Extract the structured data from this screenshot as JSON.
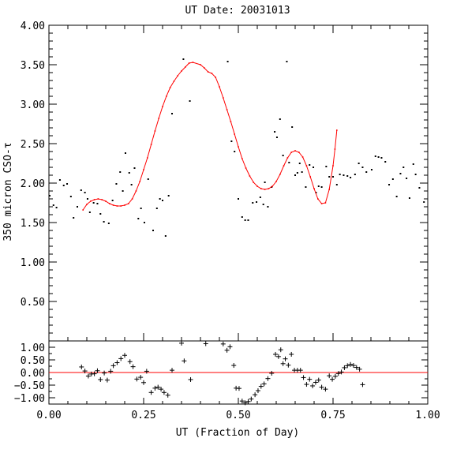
{
  "chart_data": {
    "type": "scatter",
    "title": "UT Date: 20031013",
    "xlabel": "UT (Fraction of Day)",
    "ylabel": "350 micron CSO-τ",
    "xlim": [
      0.0,
      1.0
    ],
    "ylim": [
      0.0,
      4.0
    ],
    "xticks": [
      "0.00",
      "0.25",
      "0.50",
      "0.75",
      "1.00"
    ],
    "yticks": [
      "0.50",
      "1.00",
      "1.50",
      "2.00",
      "2.50",
      "3.00",
      "3.50",
      "4.00"
    ],
    "colors": {
      "fit": "#ff0000",
      "points": "#000000",
      "axes": "#000000"
    },
    "series": [
      {
        "kind": "points",
        "points": [
          [
            0.002,
            1.84
          ],
          [
            0.012,
            1.72
          ],
          [
            0.02,
            1.69
          ],
          [
            0.029,
            2.04
          ],
          [
            0.039,
            1.97
          ],
          [
            0.048,
            1.99
          ],
          [
            0.058,
            1.83
          ],
          [
            0.065,
            1.56
          ],
          [
            0.075,
            1.7
          ],
          [
            0.085,
            1.91
          ],
          [
            0.095,
            1.88
          ],
          [
            0.102,
            1.8
          ],
          [
            0.108,
            1.63
          ],
          [
            0.118,
            1.75
          ],
          [
            0.128,
            1.74
          ],
          [
            0.136,
            1.61
          ],
          [
            0.145,
            1.51
          ],
          [
            0.158,
            1.49
          ],
          [
            0.168,
            1.78
          ],
          [
            0.178,
            1.99
          ],
          [
            0.188,
            2.14
          ],
          [
            0.195,
            1.9
          ],
          [
            0.202,
            2.38
          ],
          [
            0.212,
            2.13
          ],
          [
            0.218,
            1.98
          ],
          [
            0.226,
            2.19
          ],
          [
            0.236,
            1.55
          ],
          [
            0.243,
            1.68
          ],
          [
            0.252,
            1.5
          ],
          [
            0.262,
            2.05
          ],
          [
            0.275,
            1.4
          ],
          [
            0.285,
            1.68
          ],
          [
            0.293,
            1.8
          ],
          [
            0.3,
            1.78
          ],
          [
            0.308,
            1.33
          ],
          [
            0.316,
            1.84
          ],
          [
            0.325,
            2.88
          ],
          [
            0.355,
            3.57
          ],
          [
            0.372,
            3.04
          ],
          [
            0.472,
            3.54
          ],
          [
            0.482,
            2.53
          ],
          [
            0.49,
            2.4
          ],
          [
            0.5,
            1.8
          ],
          [
            0.51,
            1.57
          ],
          [
            0.518,
            1.53
          ],
          [
            0.526,
            1.53
          ],
          [
            0.538,
            1.75
          ],
          [
            0.548,
            1.76
          ],
          [
            0.558,
            1.82
          ],
          [
            0.566,
            1.73
          ],
          [
            0.57,
            2.01
          ],
          [
            0.578,
            1.7
          ],
          [
            0.588,
            1.95
          ],
          [
            0.596,
            2.65
          ],
          [
            0.602,
            2.58
          ],
          [
            0.61,
            2.81
          ],
          [
            0.618,
            2.35
          ],
          [
            0.628,
            3.54
          ],
          [
            0.634,
            2.26
          ],
          [
            0.642,
            2.71
          ],
          [
            0.65,
            2.1
          ],
          [
            0.656,
            2.13
          ],
          [
            0.662,
            2.25
          ],
          [
            0.668,
            2.14
          ],
          [
            0.678,
            1.95
          ],
          [
            0.688,
            2.23
          ],
          [
            0.698,
            2.2
          ],
          [
            0.705,
            1.88
          ],
          [
            0.712,
            1.96
          ],
          [
            0.72,
            1.95
          ],
          [
            0.732,
            2.21
          ],
          [
            0.74,
            2.08
          ],
          [
            0.75,
            2.08
          ],
          [
            0.76,
            1.98
          ],
          [
            0.768,
            2.11
          ],
          [
            0.778,
            2.1
          ],
          [
            0.788,
            2.09
          ],
          [
            0.796,
            2.07
          ],
          [
            0.808,
            2.11
          ],
          [
            0.818,
            2.25
          ],
          [
            0.828,
            2.2
          ],
          [
            0.838,
            2.14
          ],
          [
            0.852,
            2.17
          ],
          [
            0.862,
            2.34
          ],
          [
            0.87,
            2.33
          ],
          [
            0.878,
            2.32
          ],
          [
            0.888,
            2.27
          ],
          [
            0.898,
            1.98
          ],
          [
            0.908,
            2.05
          ],
          [
            0.918,
            1.83
          ],
          [
            0.928,
            2.12
          ],
          [
            0.936,
            2.2
          ],
          [
            0.944,
            2.06
          ],
          [
            0.952,
            1.81
          ],
          [
            0.962,
            2.24
          ],
          [
            0.968,
            2.11
          ],
          [
            0.978,
            1.94
          ],
          [
            0.99,
            1.76
          ]
        ]
      },
      {
        "kind": "fit",
        "points": [
          [
            0.09,
            1.66
          ],
          [
            0.1,
            1.73
          ],
          [
            0.11,
            1.77
          ],
          [
            0.12,
            1.79
          ],
          [
            0.13,
            1.8
          ],
          [
            0.14,
            1.79
          ],
          [
            0.15,
            1.77
          ],
          [
            0.16,
            1.74
          ],
          [
            0.17,
            1.72
          ],
          [
            0.18,
            1.71
          ],
          [
            0.19,
            1.71
          ],
          [
            0.2,
            1.72
          ],
          [
            0.21,
            1.74
          ],
          [
            0.22,
            1.8
          ],
          [
            0.23,
            1.9
          ],
          [
            0.24,
            2.02
          ],
          [
            0.25,
            2.17
          ],
          [
            0.26,
            2.32
          ],
          [
            0.27,
            2.49
          ],
          [
            0.28,
            2.66
          ],
          [
            0.29,
            2.82
          ],
          [
            0.3,
            2.97
          ],
          [
            0.31,
            3.1
          ],
          [
            0.32,
            3.21
          ],
          [
            0.33,
            3.29
          ],
          [
            0.34,
            3.36
          ],
          [
            0.35,
            3.42
          ],
          [
            0.36,
            3.47
          ],
          [
            0.37,
            3.52
          ],
          [
            0.38,
            3.53
          ],
          [
            0.4,
            3.5
          ],
          [
            0.41,
            3.46
          ],
          [
            0.42,
            3.41
          ],
          [
            0.43,
            3.39
          ],
          [
            0.44,
            3.34
          ],
          [
            0.45,
            3.22
          ],
          [
            0.46,
            3.08
          ],
          [
            0.47,
            2.93
          ],
          [
            0.48,
            2.78
          ],
          [
            0.49,
            2.62
          ],
          [
            0.5,
            2.46
          ],
          [
            0.51,
            2.31
          ],
          [
            0.52,
            2.19
          ],
          [
            0.53,
            2.09
          ],
          [
            0.54,
            2.01
          ],
          [
            0.55,
            1.96
          ],
          [
            0.56,
            1.93
          ],
          [
            0.57,
            1.92
          ],
          [
            0.58,
            1.93
          ],
          [
            0.59,
            1.96
          ],
          [
            0.6,
            2.02
          ],
          [
            0.61,
            2.11
          ],
          [
            0.62,
            2.22
          ],
          [
            0.63,
            2.32
          ],
          [
            0.64,
            2.39
          ],
          [
            0.65,
            2.41
          ],
          [
            0.66,
            2.39
          ],
          [
            0.67,
            2.33
          ],
          [
            0.68,
            2.22
          ],
          [
            0.69,
            2.08
          ],
          [
            0.7,
            1.93
          ],
          [
            0.71,
            1.8
          ],
          [
            0.72,
            1.74
          ],
          [
            0.73,
            1.75
          ],
          [
            0.74,
            1.92
          ],
          [
            0.75,
            2.22
          ],
          [
            0.755,
            2.43
          ],
          [
            0.76,
            2.67
          ]
        ]
      }
    ],
    "residuals": {
      "ylim": [
        -1.25,
        1.25
      ],
      "yticks": [
        "1.00",
        "0.50",
        "0.00",
        "−0.50",
        "−1.00"
      ],
      "zero_line": 0.0,
      "points": [
        [
          0.086,
          0.22
        ],
        [
          0.095,
          0.06
        ],
        [
          0.104,
          -0.14
        ],
        [
          0.112,
          -0.06
        ],
        [
          0.12,
          -0.05
        ],
        [
          0.128,
          0.07
        ],
        [
          0.136,
          -0.28
        ],
        [
          0.146,
          -0.02
        ],
        [
          0.154,
          -0.3
        ],
        [
          0.163,
          0.05
        ],
        [
          0.17,
          0.27
        ],
        [
          0.18,
          0.39
        ],
        [
          0.19,
          0.55
        ],
        [
          0.2,
          0.68
        ],
        [
          0.214,
          0.43
        ],
        [
          0.222,
          0.23
        ],
        [
          0.232,
          -0.26
        ],
        [
          0.242,
          -0.19
        ],
        [
          0.25,
          -0.4
        ],
        [
          0.258,
          0.05
        ],
        [
          0.27,
          -0.79
        ],
        [
          0.28,
          -0.62
        ],
        [
          0.288,
          -0.58
        ],
        [
          0.296,
          -0.66
        ],
        [
          0.304,
          -0.79
        ],
        [
          0.314,
          -0.9
        ],
        [
          0.325,
          0.09
        ],
        [
          0.35,
          1.16
        ],
        [
          0.357,
          0.46
        ],
        [
          0.374,
          -0.28
        ],
        [
          0.414,
          1.14
        ],
        [
          0.46,
          1.13
        ],
        [
          0.47,
          0.88
        ],
        [
          0.478,
          1.02
        ],
        [
          0.488,
          0.28
        ],
        [
          0.494,
          -0.62
        ],
        [
          0.502,
          -0.63
        ],
        [
          0.51,
          -1.13
        ],
        [
          0.518,
          -1.2
        ],
        [
          0.526,
          -1.15
        ],
        [
          0.534,
          -1.05
        ],
        [
          0.544,
          -0.88
        ],
        [
          0.552,
          -0.72
        ],
        [
          0.56,
          -0.55
        ],
        [
          0.568,
          -0.45
        ],
        [
          0.578,
          -0.24
        ],
        [
          0.588,
          -0.03
        ],
        [
          0.598,
          0.72
        ],
        [
          0.606,
          0.63
        ],
        [
          0.612,
          0.9
        ],
        [
          0.618,
          0.35
        ],
        [
          0.624,
          0.54
        ],
        [
          0.632,
          0.29
        ],
        [
          0.64,
          0.72
        ],
        [
          0.648,
          0.09
        ],
        [
          0.656,
          0.09
        ],
        [
          0.664,
          0.09
        ],
        [
          0.672,
          -0.2
        ],
        [
          0.68,
          -0.47
        ],
        [
          0.688,
          -0.27
        ],
        [
          0.696,
          -0.53
        ],
        [
          0.704,
          -0.39
        ],
        [
          0.712,
          -0.3
        ],
        [
          0.72,
          -0.58
        ],
        [
          0.73,
          -0.66
        ],
        [
          0.74,
          -0.13
        ],
        [
          0.748,
          -0.27
        ],
        [
          0.756,
          -0.15
        ],
        [
          0.764,
          -0.04
        ],
        [
          0.772,
          0.02
        ],
        [
          0.78,
          0.19
        ],
        [
          0.788,
          0.27
        ],
        [
          0.796,
          0.32
        ],
        [
          0.804,
          0.28
        ],
        [
          0.812,
          0.2
        ],
        [
          0.82,
          0.13
        ],
        [
          0.828,
          -0.48
        ]
      ]
    }
  }
}
